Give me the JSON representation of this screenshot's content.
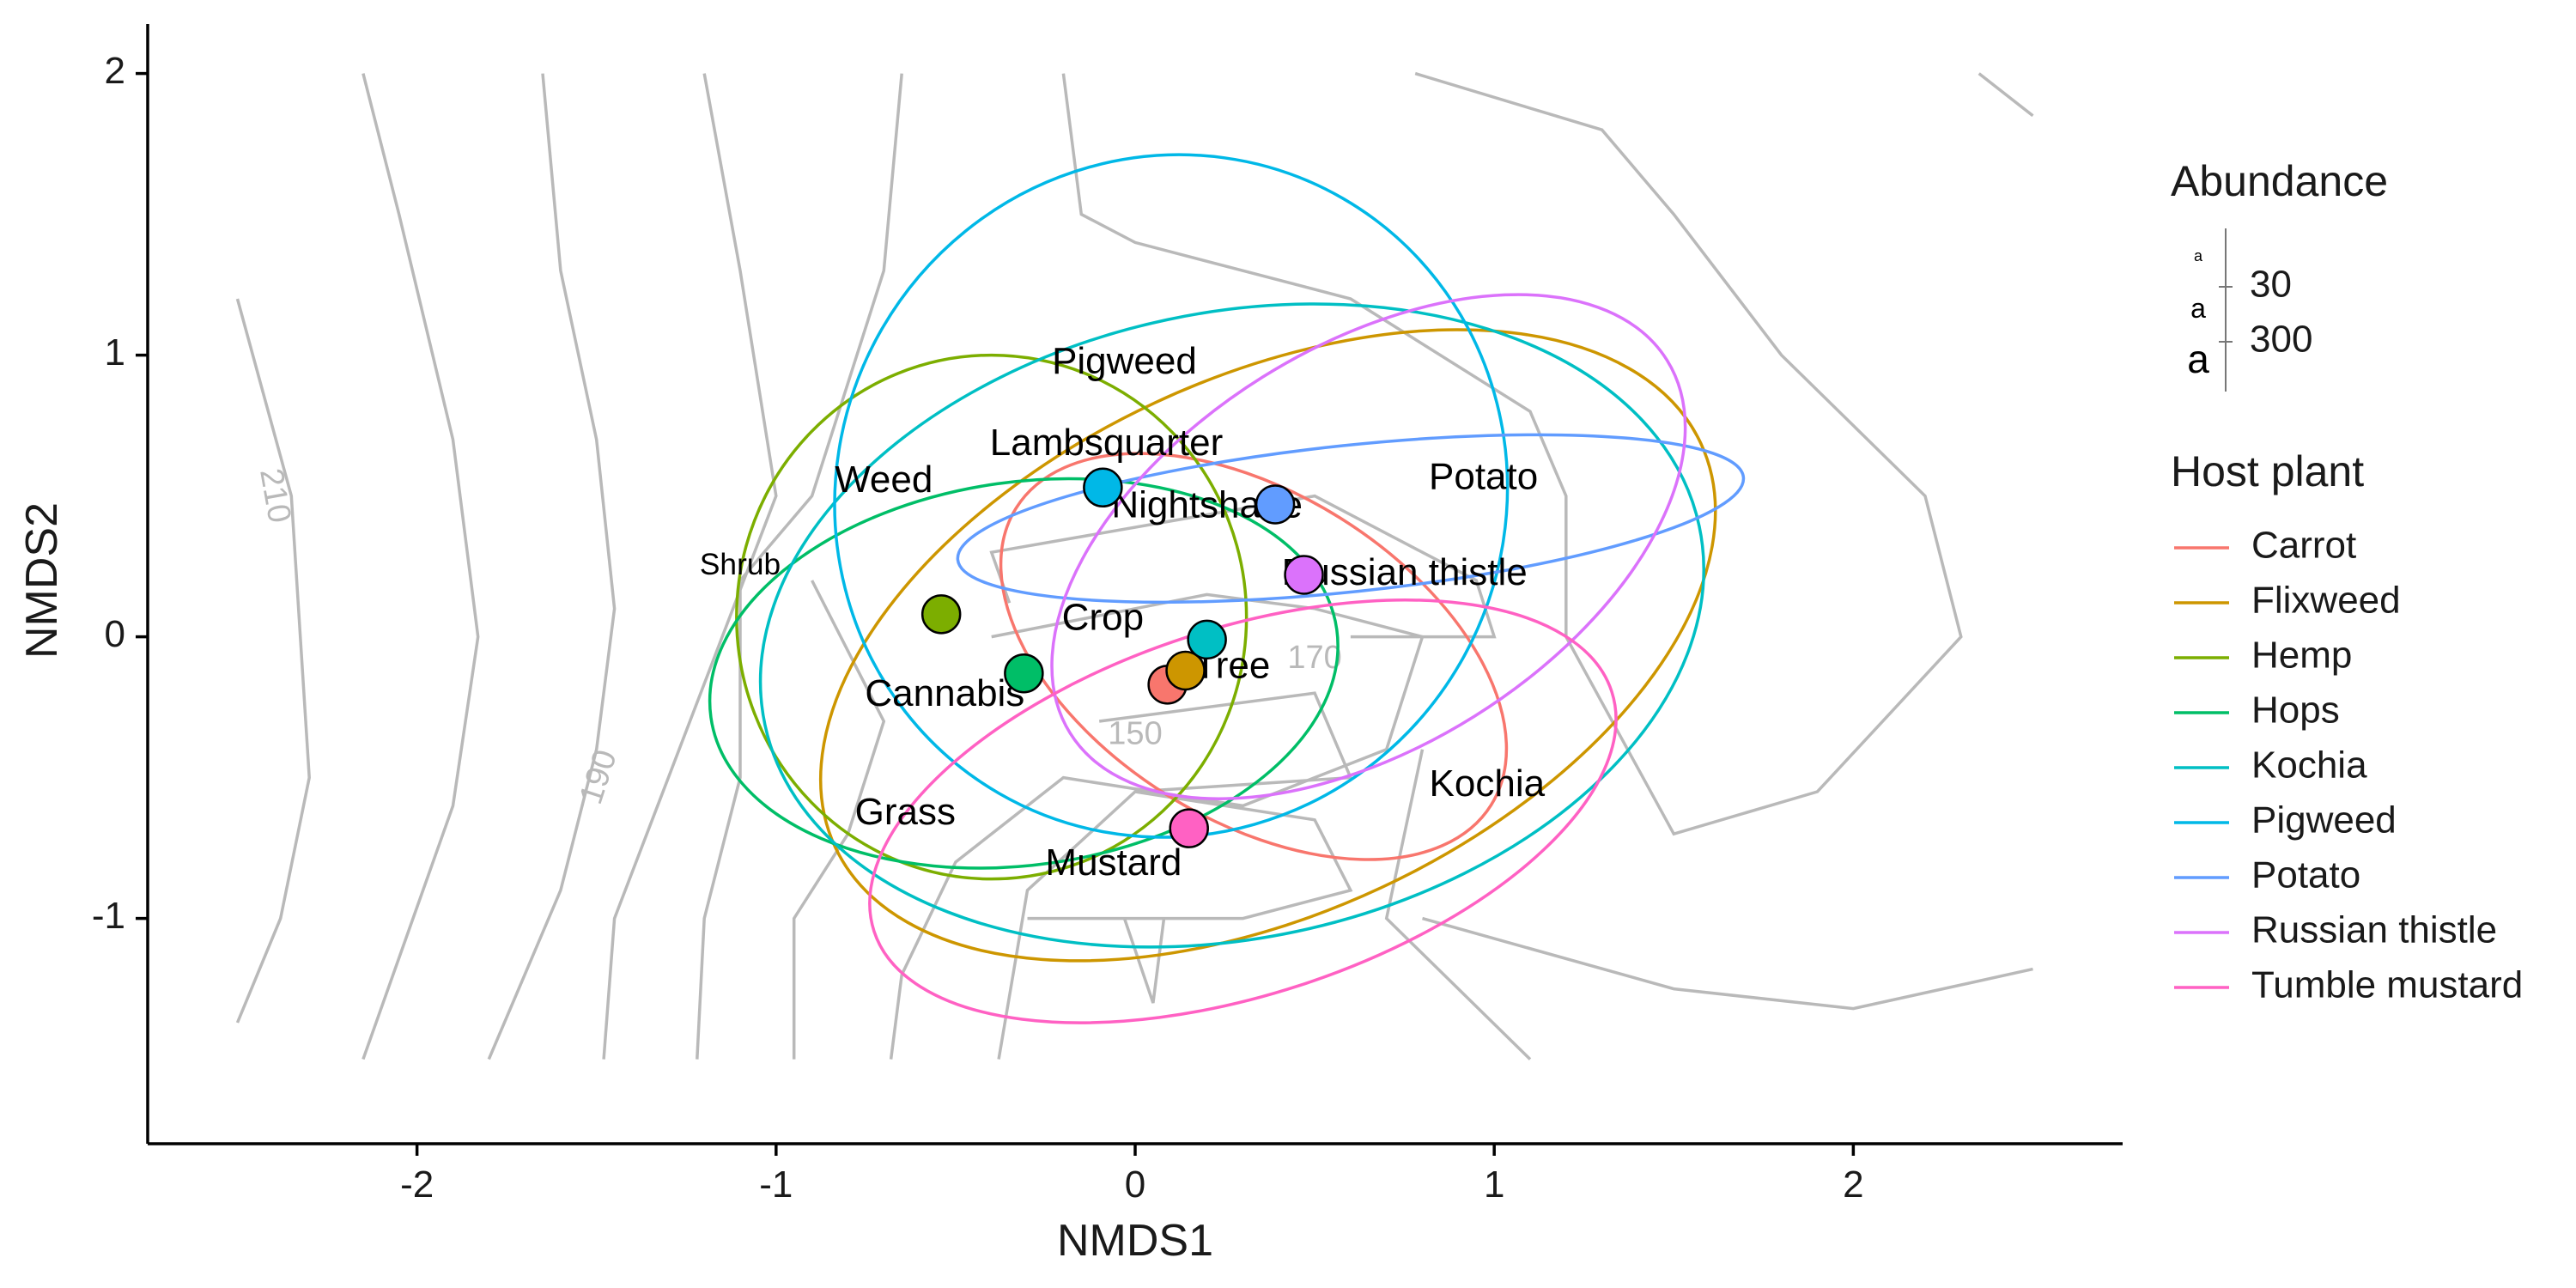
{
  "chart_data": {
    "type": "scatter",
    "xlabel": "NMDS1",
    "ylabel": "NMDS2",
    "xlim": [
      -2.75,
      2.75
    ],
    "ylim": [
      -1.8,
      2.2
    ],
    "x_ticks": [
      -2,
      -1,
      0,
      1,
      2
    ],
    "y_ticks": [
      -1,
      0,
      1,
      2
    ],
    "grid": false,
    "legend_position": "right",
    "series": [
      {
        "name": "Carrot",
        "color": "#F8766D",
        "x": 0.09,
        "y": -0.17,
        "ellipse": {
          "cx": 0.33,
          "cy": -0.07,
          "rx": 0.78,
          "ry": 0.58,
          "angle": -32
        }
      },
      {
        "name": "Flixweed",
        "color": "#CD9600",
        "x": 0.14,
        "y": -0.12,
        "ellipse": {
          "cx": 0.37,
          "cy": -0.03,
          "rx": 1.33,
          "ry": 0.95,
          "angle": 25
        }
      },
      {
        "name": "Hemp",
        "color": "#7CAE00",
        "x": -0.54,
        "y": 0.08,
        "ellipse": {
          "cx": -0.4,
          "cy": 0.07,
          "rx": 0.71,
          "ry": 0.93,
          "angle": 0
        }
      },
      {
        "name": "Hops",
        "color": "#00BE67",
        "x": -0.31,
        "y": -0.13,
        "ellipse": {
          "cx": -0.31,
          "cy": -0.13,
          "rx": 0.88,
          "ry": 0.68,
          "angle": 8
        }
      },
      {
        "name": "Kochia",
        "color": "#00BFC4",
        "x": 0.2,
        "y": -0.01,
        "ellipse": {
          "cx": 0.27,
          "cy": 0.04,
          "rx": 1.33,
          "ry": 1.11,
          "angle": 12
        }
      },
      {
        "name": "Pigweed",
        "color": "#00B8E7",
        "x": -0.09,
        "y": 0.53,
        "ellipse": {
          "cx": 0.1,
          "cy": 0.5,
          "rx": 0.93,
          "ry": 1.22,
          "angle": -30
        }
      },
      {
        "name": "Potato",
        "color": "#619CFF",
        "x": 0.39,
        "y": 0.47,
        "ellipse": {
          "cx": 0.6,
          "cy": 0.42,
          "rx": 1.1,
          "ry": 0.26,
          "angle": 6
        }
      },
      {
        "name": "Russian thistle",
        "color": "#DB72FB",
        "x": 0.47,
        "y": 0.22,
        "ellipse": {
          "cx": 0.65,
          "cy": 0.32,
          "rx": 0.98,
          "ry": 0.71,
          "angle": 32
        }
      },
      {
        "name": "Tumble mustard",
        "color": "#FF61C3",
        "x": 0.15,
        "y": -0.68,
        "ellipse": {
          "cx": 0.3,
          "cy": -0.62,
          "rx": 1.08,
          "ry": 0.65,
          "angle": 18
        }
      }
    ],
    "text_labels": [
      {
        "text": "Pigweed",
        "x": -0.03,
        "y": 0.97,
        "size": 30
      },
      {
        "text": "Lambsquarter",
        "x": -0.08,
        "y": 0.68,
        "size": 30
      },
      {
        "text": "Weed",
        "x": -0.7,
        "y": 0.55,
        "size": 30
      },
      {
        "text": "Nightshade",
        "x": 0.2,
        "y": 0.46,
        "size": 30
      },
      {
        "text": "Potato",
        "x": 0.97,
        "y": 0.56,
        "size": 30
      },
      {
        "text": "Shrub",
        "x": -1.1,
        "y": 0.25,
        "size": 8
      },
      {
        "text": "Russian thistle",
        "x": 0.75,
        "y": 0.22,
        "size": 30
      },
      {
        "text": "Crop",
        "x": -0.09,
        "y": 0.06,
        "size": 30
      },
      {
        "text": "Tree",
        "x": 0.27,
        "y": -0.11,
        "size": 30
      },
      {
        "text": "Cannabis",
        "x": -0.53,
        "y": -0.21,
        "size": 30
      },
      {
        "text": "Kochia",
        "x": 0.98,
        "y": -0.53,
        "size": 30
      },
      {
        "text": "Grass",
        "x": -0.64,
        "y": -0.63,
        "size": 30
      },
      {
        "text": "Mustard",
        "x": -0.06,
        "y": -0.81,
        "size": 30
      }
    ],
    "contour_labels": [
      {
        "text": "210",
        "x": -2.4,
        "y": 0.5,
        "angle": 80
      },
      {
        "text": "190",
        "x": -1.49,
        "y": -0.5,
        "angle": -72
      },
      {
        "text": "170",
        "x": 0.5,
        "y": -0.08,
        "angle": 0
      },
      {
        "text": "150",
        "x": 0.0,
        "y": -0.35,
        "angle": 0
      }
    ],
    "contours": [
      [
        [
          -2.5,
          1.2
        ],
        [
          -2.35,
          0.5
        ],
        [
          -2.3,
          -0.5
        ],
        [
          -2.38,
          -1.0
        ],
        [
          -2.5,
          -1.37
        ]
      ],
      [
        [
          -2.15,
          2.0
        ],
        [
          -2.05,
          1.5
        ],
        [
          -1.9,
          0.7
        ],
        [
          -1.83,
          0.0
        ],
        [
          -1.9,
          -0.6
        ],
        [
          -2.15,
          -1.5
        ]
      ],
      [
        [
          -1.65,
          2.0
        ],
        [
          -1.6,
          1.3
        ],
        [
          -1.5,
          0.7
        ],
        [
          -1.45,
          0.1
        ],
        [
          -1.5,
          -0.4
        ],
        [
          -1.6,
          -0.9
        ],
        [
          -1.8,
          -1.5
        ]
      ],
      [
        [
          -1.2,
          2.0
        ],
        [
          -1.1,
          1.3
        ],
        [
          -1.0,
          0.5
        ],
        [
          -1.3,
          -0.5
        ],
        [
          -1.45,
          -1.0
        ],
        [
          -1.48,
          -1.5
        ]
      ],
      [
        [
          -0.65,
          2.0
        ],
        [
          -0.7,
          1.3
        ],
        [
          -0.9,
          0.5
        ],
        [
          -1.1,
          0.2
        ],
        [
          -1.1,
          -0.5
        ],
        [
          -1.2,
          -1.0
        ],
        [
          -1.22,
          -1.5
        ]
      ],
      [
        [
          -0.9,
          0.2
        ],
        [
          -0.7,
          -0.3
        ],
        [
          -0.8,
          -0.7
        ],
        [
          -0.95,
          -1.0
        ],
        [
          -0.95,
          -1.5
        ]
      ],
      [
        [
          -0.4,
          0.0
        ],
        [
          0.2,
          0.15
        ],
        [
          0.5,
          0.1
        ],
        [
          0.8,
          0.0
        ],
        [
          0.7,
          -0.4
        ],
        [
          0.3,
          -0.6
        ],
        [
          -0.2,
          -0.5
        ],
        [
          -0.5,
          -0.8
        ],
        [
          -0.65,
          -1.2
        ],
        [
          -0.68,
          -1.5
        ]
      ],
      [
        [
          -0.1,
          -0.3
        ],
        [
          0.5,
          -0.2
        ],
        [
          0.6,
          -0.5
        ],
        [
          0.0,
          -0.55
        ],
        [
          -0.3,
          -0.9
        ],
        [
          -0.38,
          -1.5
        ]
      ],
      [
        [
          0.0,
          -0.55
        ],
        [
          0.5,
          -0.65
        ],
        [
          0.6,
          -0.9
        ],
        [
          0.3,
          -1.0
        ],
        [
          -0.3,
          -1.0
        ]
      ],
      [
        [
          -0.03,
          -1.0
        ],
        [
          0.05,
          -1.3
        ],
        [
          0.08,
          -1.0
        ]
      ],
      [
        [
          0.8,
          -0.4
        ],
        [
          0.7,
          -1.0
        ],
        [
          1.1,
          -1.5
        ]
      ],
      [
        [
          -0.35,
          0.12
        ],
        [
          -0.4,
          0.3
        ],
        [
          0.5,
          0.5
        ],
        [
          0.8,
          0.3
        ],
        [
          0.95,
          0.2
        ],
        [
          1.0,
          0.0
        ],
        [
          0.6,
          0.0
        ]
      ],
      [
        [
          -0.2,
          2.0
        ],
        [
          -0.15,
          1.5
        ],
        [
          0.0,
          1.4
        ],
        [
          0.6,
          1.2
        ],
        [
          1.1,
          0.8
        ],
        [
          1.2,
          0.5
        ],
        [
          1.2,
          0.0
        ],
        [
          1.5,
          -0.7
        ],
        [
          1.9,
          -0.55
        ],
        [
          2.3,
          0.0
        ],
        [
          2.2,
          0.5
        ],
        [
          1.8,
          1.0
        ],
        [
          1.5,
          1.5
        ],
        [
          1.3,
          1.8
        ],
        [
          0.78,
          2.0
        ]
      ],
      [
        [
          0.8,
          -1.0
        ],
        [
          1.5,
          -1.25
        ],
        [
          2.0,
          -1.32
        ],
        [
          2.5,
          -1.18
        ]
      ],
      [
        [
          2.35,
          2.0
        ],
        [
          2.5,
          1.85
        ]
      ]
    ]
  },
  "legend": {
    "abundance_title": "Abundance",
    "abundance_glyph": "a",
    "abundance_items": [
      "30",
      "300"
    ],
    "host_title": "Host plant",
    "host_items": [
      "Carrot",
      "Flixweed",
      "Hemp",
      "Hops",
      "Kochia",
      "Pigweed",
      "Potato",
      "Russian thistle",
      "Tumble mustard"
    ]
  }
}
